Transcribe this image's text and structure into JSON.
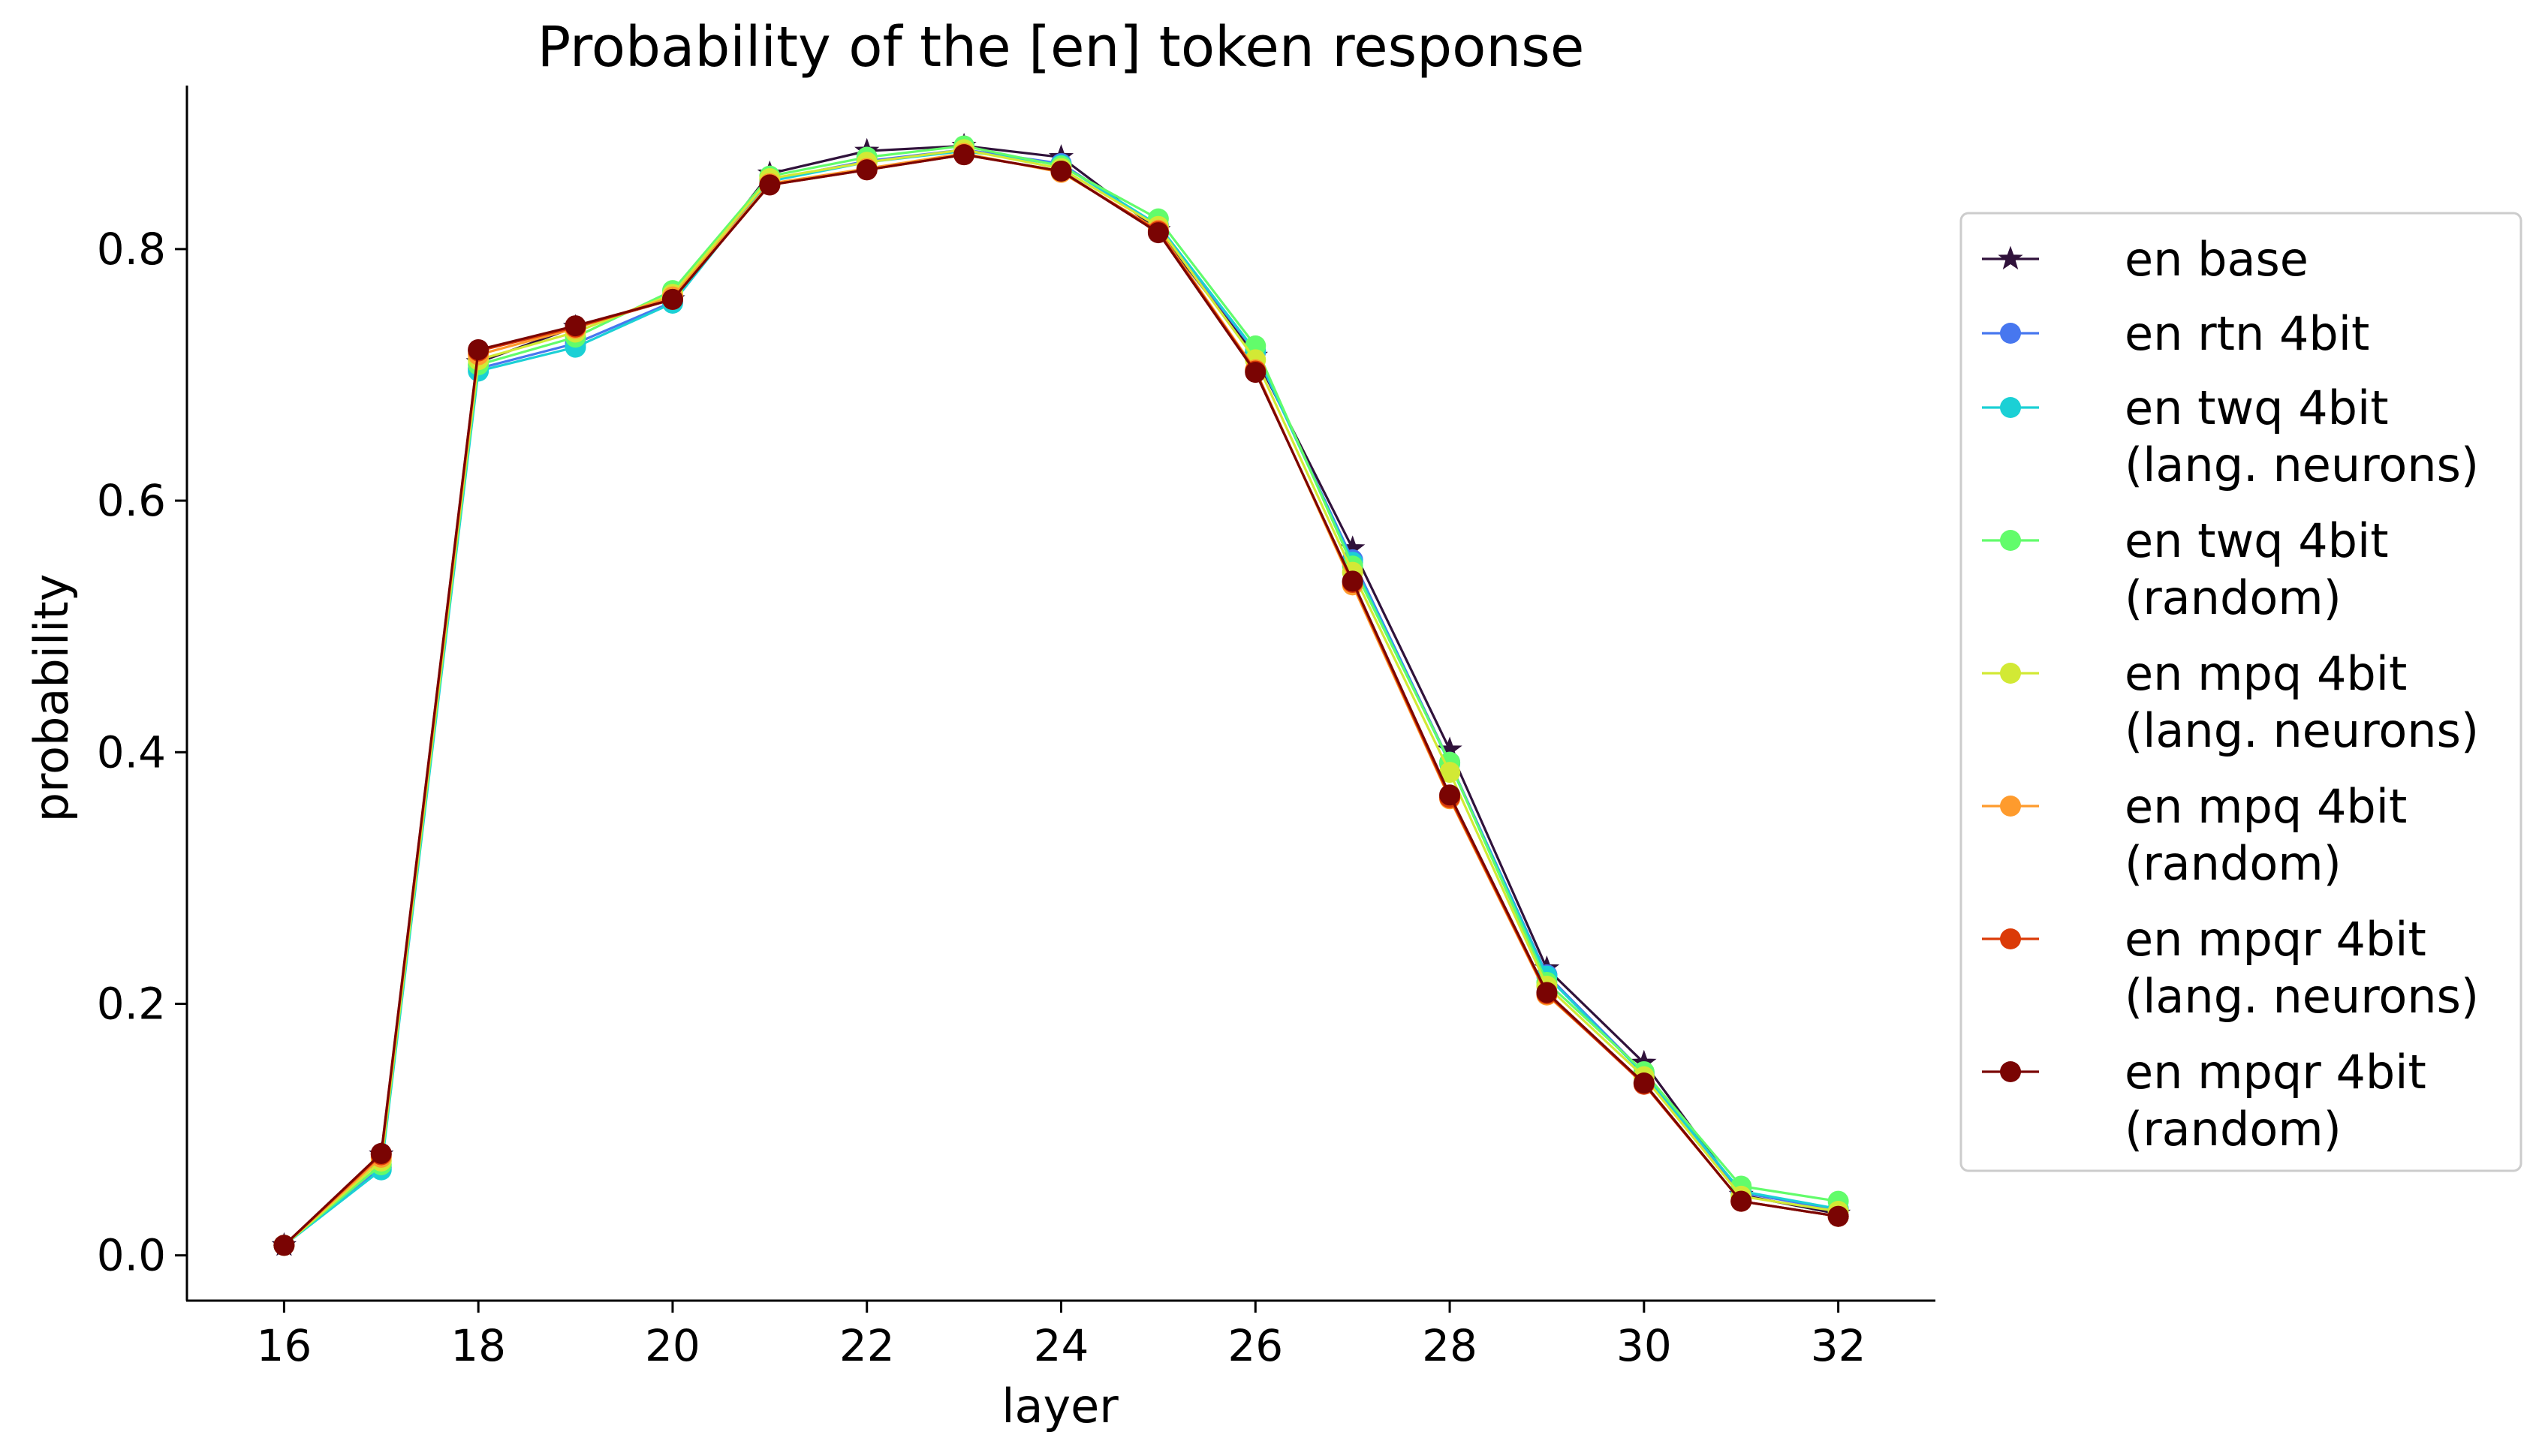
{
  "chart_data": {
    "type": "line",
    "title": "Probability of the [en] token response",
    "xlabel": "layer",
    "ylabel": "probability",
    "xlim": [
      15,
      33
    ],
    "ylim": [
      -0.036,
      0.93
    ],
    "x_ticks": [
      16,
      18,
      20,
      22,
      24,
      26,
      28,
      30,
      32
    ],
    "x_tick_labels": [
      "16",
      "18",
      "20",
      "22",
      "24",
      "26",
      "28",
      "30",
      "32"
    ],
    "y_ticks": [
      0.0,
      0.2,
      0.4,
      0.6,
      0.8
    ],
    "y_tick_labels": [
      "0.0",
      "0.2",
      "0.4",
      "0.6",
      "0.8"
    ],
    "grid": false,
    "legend_position": "right-outside",
    "x": [
      16,
      17,
      18,
      19,
      20,
      21,
      22,
      23,
      24,
      25,
      26,
      27,
      28,
      29,
      30,
      31,
      32
    ],
    "series": [
      {
        "name": "en base",
        "label_lines": [
          "en base"
        ],
        "color": "#30123b",
        "marker": "star",
        "values": [
          0.008,
          0.08,
          0.71,
          0.738,
          0.76,
          0.86,
          0.878,
          0.882,
          0.873,
          0.815,
          0.715,
          0.562,
          0.402,
          0.228,
          0.153,
          0.048,
          0.033
        ]
      },
      {
        "name": "en rtn 4bit",
        "label_lines": [
          "en rtn 4bit"
        ],
        "color": "#4777ef",
        "marker": "circle",
        "values": [
          0.008,
          0.07,
          0.705,
          0.725,
          0.758,
          0.855,
          0.87,
          0.879,
          0.868,
          0.818,
          0.718,
          0.553,
          0.392,
          0.223,
          0.145,
          0.05,
          0.036
        ]
      },
      {
        "name": "en twq 4bit (lang. neurons)",
        "label_lines": [
          "en twq 4bit",
          "(lang. neurons)"
        ],
        "color": "#1bd0d5",
        "marker": "circle",
        "values": [
          0.008,
          0.068,
          0.703,
          0.722,
          0.757,
          0.854,
          0.869,
          0.878,
          0.867,
          0.819,
          0.719,
          0.551,
          0.391,
          0.222,
          0.144,
          0.051,
          0.037
        ]
      },
      {
        "name": "en twq 4bit (random)",
        "label_lines": [
          "en twq 4bit",
          "(random)"
        ],
        "color": "#62fc6b",
        "marker": "circle",
        "values": [
          0.008,
          0.072,
          0.708,
          0.73,
          0.767,
          0.858,
          0.873,
          0.882,
          0.866,
          0.824,
          0.723,
          0.548,
          0.392,
          0.217,
          0.146,
          0.055,
          0.043
        ]
      },
      {
        "name": "en mpq 4bit (lang. neurons)",
        "label_lines": [
          "en mpq 4bit",
          "(lang. neurons)"
        ],
        "color": "#d2e935",
        "marker": "circle",
        "values": [
          0.008,
          0.075,
          0.712,
          0.734,
          0.764,
          0.856,
          0.869,
          0.879,
          0.864,
          0.818,
          0.712,
          0.543,
          0.384,
          0.214,
          0.142,
          0.047,
          0.035
        ]
      },
      {
        "name": "en mpq 4bit (random)",
        "label_lines": [
          "en mpq 4bit",
          "(random)"
        ],
        "color": "#fe9b2d",
        "marker": "circle",
        "values": [
          0.008,
          0.078,
          0.716,
          0.737,
          0.762,
          0.852,
          0.864,
          0.876,
          0.861,
          0.815,
          0.704,
          0.533,
          0.363,
          0.207,
          0.137,
          0.043,
          0.031
        ]
      },
      {
        "name": "en mpqr 4bit (lang. neurons)",
        "label_lines": [
          "en mpqr 4bit",
          "(lang. neurons)"
        ],
        "color": "#db3a07",
        "marker": "circle",
        "values": [
          0.008,
          0.08,
          0.719,
          0.738,
          0.76,
          0.851,
          0.863,
          0.875,
          0.862,
          0.814,
          0.703,
          0.535,
          0.364,
          0.208,
          0.136,
          0.043,
          0.031
        ]
      },
      {
        "name": "en mpqr 4bit (random)",
        "label_lines": [
          "en mpqr 4bit",
          "(random)"
        ],
        "color": "#7a0403",
        "marker": "circle",
        "values": [
          0.008,
          0.081,
          0.72,
          0.739,
          0.76,
          0.851,
          0.863,
          0.875,
          0.862,
          0.813,
          0.702,
          0.536,
          0.366,
          0.209,
          0.137,
          0.043,
          0.031
        ]
      }
    ]
  }
}
